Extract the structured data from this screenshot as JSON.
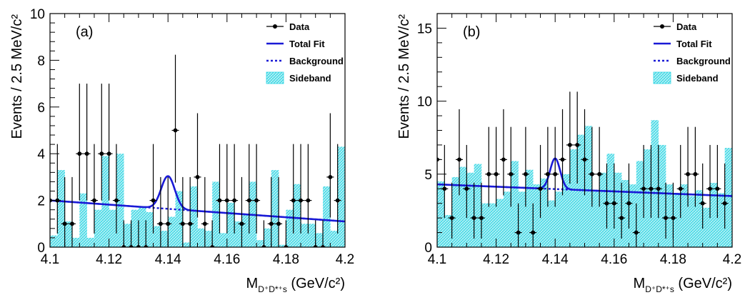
{
  "colors": {
    "fit": "#1a1ad6",
    "sideband": "#2ed5e3",
    "sideband_fill": "#bff2f6",
    "data": "#000000"
  },
  "legend": {
    "data_label": "Data",
    "fit_label": "Total Fit",
    "bkg_label": "Background",
    "sideband_label": "Sideband"
  },
  "chart_data": [
    {
      "type": "bar",
      "panel_label": "(a)",
      "xlabel_main": "M",
      "xlabel_sub": "D⁺D*⁺s",
      "xlabel_unit": "(GeV/c²)",
      "ylabel": "Events / 2.5 MeV/c²",
      "xlim": [
        4.1,
        4.2
      ],
      "ylim": [
        0,
        10
      ],
      "xticks": [
        "4.1",
        "4.12",
        "4.14",
        "4.16",
        "4.18",
        "4.2"
      ],
      "yticks": [
        "0",
        "2",
        "4",
        "6",
        "8",
        "10"
      ],
      "data_points": [
        {
          "x": 4.1,
          "y": 2
        },
        {
          "x": 4.1025,
          "y": 2
        },
        {
          "x": 4.105,
          "y": 1
        },
        {
          "x": 4.1075,
          "y": 1
        },
        {
          "x": 4.11,
          "y": 4
        },
        {
          "x": 4.1125,
          "y": 4
        },
        {
          "x": 4.115,
          "y": 2
        },
        {
          "x": 4.1175,
          "y": 4
        },
        {
          "x": 4.12,
          "y": 4
        },
        {
          "x": 4.1225,
          "y": 2
        },
        {
          "x": 4.125,
          "y": 0
        },
        {
          "x": 4.1275,
          "y": 0
        },
        {
          "x": 4.13,
          "y": 0
        },
        {
          "x": 4.1325,
          "y": 0
        },
        {
          "x": 4.135,
          "y": 2
        },
        {
          "x": 4.1375,
          "y": 1
        },
        {
          "x": 4.14,
          "y": 1
        },
        {
          "x": 4.1425,
          "y": 5
        },
        {
          "x": 4.145,
          "y": 1
        },
        {
          "x": 4.1475,
          "y": 1
        },
        {
          "x": 4.15,
          "y": 3
        },
        {
          "x": 4.1525,
          "y": 1
        },
        {
          "x": 4.155,
          "y": 0
        },
        {
          "x": 4.1575,
          "y": 2
        },
        {
          "x": 4.16,
          "y": 2
        },
        {
          "x": 4.1625,
          "y": 2
        },
        {
          "x": 4.165,
          "y": 1
        },
        {
          "x": 4.1675,
          "y": 2
        },
        {
          "x": 4.17,
          "y": 2
        },
        {
          "x": 4.1725,
          "y": 0
        },
        {
          "x": 4.175,
          "y": 1
        },
        {
          "x": 4.1775,
          "y": 1
        },
        {
          "x": 4.18,
          "y": 0
        },
        {
          "x": 4.1825,
          "y": 2
        },
        {
          "x": 4.185,
          "y": 2
        },
        {
          "x": 4.1875,
          "y": 2
        },
        {
          "x": 4.19,
          "y": 0
        },
        {
          "x": 4.1925,
          "y": 0
        },
        {
          "x": 4.195,
          "y": 3
        },
        {
          "x": 4.1975,
          "y": 2
        }
      ],
      "sideband_bins": [
        0.5,
        3.3,
        1.1,
        0.4,
        2.3,
        0.4,
        1.6,
        3.9,
        1.6,
        4.0,
        1.0,
        1.6,
        1.7,
        1.5,
        0.9,
        0.7,
        1.3,
        2.4,
        0.2,
        2.6,
        0.8,
        0.7,
        2.8,
        0.6,
        1.9,
        1.1,
        1.4,
        2.8,
        0.3,
        0.8,
        3.3,
        0.1,
        1.6,
        2.7,
        1.0,
        1.0,
        0.6,
        2.6,
        0.7,
        4.3
      ],
      "background_line": [
        [
          4.1,
          2.0
        ],
        [
          4.2,
          1.1
        ]
      ],
      "signal_peak": {
        "mean": 4.14,
        "sigma": 0.0023,
        "amplitude": 1.4
      }
    },
    {
      "type": "bar",
      "panel_label": "(b)",
      "xlabel_main": "M",
      "xlabel_sub": "D⁺D*⁺s",
      "xlabel_unit": "(GeV/c²)",
      "ylabel": "Events / 2.5 MeV/c²",
      "xlim": [
        4.1,
        4.2
      ],
      "ylim": [
        0,
        16
      ],
      "xticks": [
        "4.1",
        "4.12",
        "4.14",
        "4.16",
        "4.18",
        "4.2"
      ],
      "yticks": [
        "0",
        "5",
        "10",
        "15"
      ],
      "data_points": [
        {
          "x": 4.1,
          "y": 6
        },
        {
          "x": 4.1025,
          "y": 4
        },
        {
          "x": 4.105,
          "y": 2
        },
        {
          "x": 4.1075,
          "y": 6
        },
        {
          "x": 4.11,
          "y": 4
        },
        {
          "x": 4.1125,
          "y": 2
        },
        {
          "x": 4.115,
          "y": 2
        },
        {
          "x": 4.1175,
          "y": 5
        },
        {
          "x": 4.12,
          "y": 5
        },
        {
          "x": 4.1225,
          "y": 6
        },
        {
          "x": 4.125,
          "y": 5
        },
        {
          "x": 4.1275,
          "y": 1
        },
        {
          "x": 4.13,
          "y": 5
        },
        {
          "x": 4.1325,
          "y": 1
        },
        {
          "x": 4.135,
          "y": 4
        },
        {
          "x": 4.1375,
          "y": 5
        },
        {
          "x": 4.14,
          "y": 5
        },
        {
          "x": 4.1425,
          "y": 6
        },
        {
          "x": 4.145,
          "y": 7
        },
        {
          "x": 4.1475,
          "y": 7
        },
        {
          "x": 4.15,
          "y": 6
        },
        {
          "x": 4.1525,
          "y": 5
        },
        {
          "x": 4.155,
          "y": 5
        },
        {
          "x": 4.1575,
          "y": 3
        },
        {
          "x": 4.16,
          "y": 3
        },
        {
          "x": 4.1625,
          "y": 2
        },
        {
          "x": 4.165,
          "y": 3
        },
        {
          "x": 4.1675,
          "y": 1
        },
        {
          "x": 4.17,
          "y": 4
        },
        {
          "x": 4.1725,
          "y": 4
        },
        {
          "x": 4.175,
          "y": 4
        },
        {
          "x": 4.1775,
          "y": 2
        },
        {
          "x": 4.18,
          "y": 2
        },
        {
          "x": 4.1825,
          "y": 4
        },
        {
          "x": 4.185,
          "y": 5
        },
        {
          "x": 4.1875,
          "y": 5
        },
        {
          "x": 4.19,
          "y": 3
        },
        {
          "x": 4.1925,
          "y": 4
        },
        {
          "x": 4.195,
          "y": 4
        },
        {
          "x": 4.1975,
          "y": 3
        }
      ],
      "sideband_bins": [
        4.5,
        2.2,
        4.8,
        5.5,
        5.1,
        5.7,
        3.0,
        3.0,
        3.3,
        3.8,
        5.9,
        3.8,
        5.3,
        4.3,
        4.7,
        3.2,
        3.8,
        5.0,
        6.7,
        7.7,
        8.3,
        3.8,
        5.1,
        6.4,
        5.1,
        4.6,
        4.3,
        5.9,
        6.7,
        8.7,
        7.0,
        4.3,
        3.7,
        4.3,
        3.5,
        3.9,
        2.7,
        4.4,
        3.7,
        6.8
      ],
      "background_line": [
        [
          4.1,
          4.3
        ],
        [
          4.2,
          3.5
        ]
      ],
      "signal_peak": {
        "mean": 4.14,
        "sigma": 0.0017,
        "amplitude": 2.1
      }
    }
  ]
}
